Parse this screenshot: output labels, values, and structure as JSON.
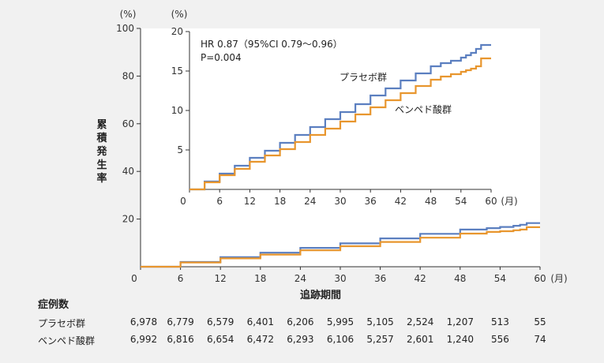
{
  "chart_data": [
    {
      "type": "line",
      "ylabel": "累積発生率",
      "y_unit": "(%)",
      "xlabel": "追跡期間",
      "x_unit": "(月)",
      "xlim": [
        0,
        60
      ],
      "ylim": [
        0,
        100
      ],
      "x_ticks": [
        0,
        6,
        12,
        18,
        24,
        30,
        36,
        42,
        48,
        54,
        60
      ],
      "y_ticks": [
        20,
        40,
        60,
        80,
        100
      ],
      "series": [
        {
          "name": "プラセボ群",
          "color": "#5b7fc0",
          "x": [
            0,
            6,
            12,
            18,
            24,
            30,
            36,
            42,
            48,
            52,
            54,
            56,
            57,
            58,
            60
          ],
          "y": [
            0,
            2.0,
            4.0,
            5.9,
            7.9,
            9.8,
            11.9,
            13.8,
            15.6,
            16.2,
            16.7,
            17.2,
            17.6,
            18.3,
            18.3
          ]
        },
        {
          "name": "ベンペド酸群",
          "color": "#e8962e",
          "x": [
            0,
            6,
            12,
            18,
            24,
            30,
            36,
            42,
            48,
            52,
            54,
            56,
            57,
            58,
            60
          ],
          "y": [
            0,
            1.8,
            3.5,
            5.1,
            6.9,
            8.6,
            10.4,
            12.2,
            13.9,
            14.6,
            14.9,
            15.3,
            15.6,
            16.6,
            16.6
          ]
        }
      ]
    },
    {
      "type": "line",
      "inset": true,
      "y_unit": "(%)",
      "x_unit": "(月)",
      "xlim": [
        0,
        60
      ],
      "ylim": [
        0,
        20
      ],
      "x_ticks": [
        0,
        6,
        12,
        18,
        24,
        30,
        36,
        42,
        48,
        54,
        60
      ],
      "y_ticks": [
        5,
        10,
        15,
        20
      ],
      "annotation": [
        "HR 0.87（95%CI 0.79～0.96）",
        "P=0.004"
      ],
      "series": [
        {
          "name": "プラセボ群",
          "color": "#5b7fc0",
          "x": [
            0,
            3,
            6,
            9,
            12,
            15,
            18,
            21,
            24,
            27,
            30,
            33,
            36,
            39,
            42,
            45,
            48,
            50,
            52,
            54,
            55,
            56,
            57,
            58,
            60
          ],
          "y": [
            0,
            1.0,
            2.0,
            3.0,
            4.0,
            4.9,
            5.9,
            6.9,
            7.9,
            8.9,
            9.8,
            10.8,
            11.9,
            12.8,
            13.8,
            14.7,
            15.6,
            16.0,
            16.3,
            16.7,
            17.0,
            17.3,
            17.8,
            18.3,
            18.3
          ]
        },
        {
          "name": "ベンペド酸群",
          "color": "#e8962e",
          "x": [
            0,
            3,
            6,
            9,
            12,
            15,
            18,
            21,
            24,
            27,
            30,
            33,
            36,
            39,
            42,
            45,
            48,
            50,
            52,
            54,
            55,
            56,
            57,
            58,
            60
          ],
          "y": [
            0,
            0.9,
            1.8,
            2.6,
            3.5,
            4.3,
            5.1,
            6.0,
            6.9,
            7.7,
            8.6,
            9.5,
            10.4,
            11.3,
            12.2,
            13.1,
            13.9,
            14.3,
            14.6,
            14.9,
            15.1,
            15.3,
            15.6,
            16.6,
            16.6
          ]
        }
      ]
    }
  ],
  "risk_table": {
    "title": "症例数",
    "rows": [
      {
        "label": "プラセボ群",
        "values": [
          "6,978",
          "6,779",
          "6,579",
          "6,401",
          "6,206",
          "5,995",
          "5,105",
          "2,524",
          "1,207",
          "513",
          "55"
        ]
      },
      {
        "label": "ベンペド酸群",
        "values": [
          "6,992",
          "6,816",
          "6,654",
          "6,472",
          "6,293",
          "6,106",
          "5,257",
          "2,601",
          "1,240",
          "556",
          "74"
        ]
      }
    ]
  }
}
